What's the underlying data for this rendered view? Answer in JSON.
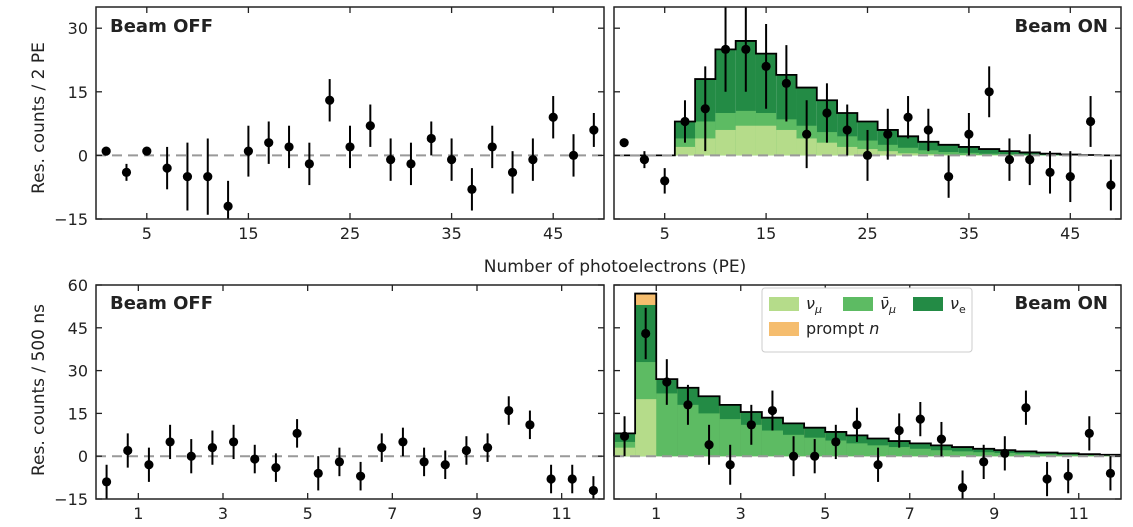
{
  "colors": {
    "numu": "#b5dc8a",
    "numubar": "#5dbb63",
    "nue": "#238b45",
    "prompt": "#f5bd6e",
    "data": "#000000",
    "zero_line": "#999999"
  },
  "labels": {
    "beam_off": "Beam OFF",
    "beam_on": "Beam ON",
    "ylabel_top": "Res. counts / 2 PE",
    "xlabel_top": "Number of photoelectrons (PE)",
    "ylabel_bottom": "Res. counts / 500 ns"
  },
  "legend": {
    "placement": "top-right (bottom-right panel)",
    "entries": [
      {
        "key": "numu",
        "label": "νμ"
      },
      {
        "key": "numubar",
        "label": "ν̄μ"
      },
      {
        "key": "nue",
        "label": "νe"
      },
      {
        "key": "prompt",
        "label": "prompt n"
      }
    ]
  },
  "chart_data": [
    {
      "id": "pe_off",
      "type": "scatter",
      "title": "Beam OFF",
      "ylabel": "Res. counts / 2 PE",
      "xlim": [
        0,
        50
      ],
      "ylim": [
        -15,
        35
      ],
      "xticks": [
        5,
        15,
        25,
        35,
        45
      ],
      "yticks": [
        -15,
        0,
        15,
        30
      ],
      "points": [
        {
          "x": 1,
          "y": 1,
          "err": 0
        },
        {
          "x": 3,
          "y": -4,
          "err": 2
        },
        {
          "x": 5,
          "y": 1,
          "err": 0
        },
        {
          "x": 7,
          "y": -3,
          "err": 5
        },
        {
          "x": 9,
          "y": -5,
          "err": 8
        },
        {
          "x": 11,
          "y": -5,
          "err": 9
        },
        {
          "x": 13,
          "y": -12,
          "err": 6
        },
        {
          "x": 15,
          "y": 1,
          "err": 6
        },
        {
          "x": 17,
          "y": 3,
          "err": 5
        },
        {
          "x": 19,
          "y": 2,
          "err": 5
        },
        {
          "x": 21,
          "y": -2,
          "err": 5
        },
        {
          "x": 23,
          "y": 13,
          "err": 5
        },
        {
          "x": 25,
          "y": 2,
          "err": 5
        },
        {
          "x": 27,
          "y": 7,
          "err": 5
        },
        {
          "x": 29,
          "y": -1,
          "err": 5
        },
        {
          "x": 31,
          "y": -2,
          "err": 5
        },
        {
          "x": 33,
          "y": 4,
          "err": 4
        },
        {
          "x": 35,
          "y": -1,
          "err": 5
        },
        {
          "x": 37,
          "y": -8,
          "err": 5
        },
        {
          "x": 39,
          "y": 2,
          "err": 5
        },
        {
          "x": 41,
          "y": -4,
          "err": 5
        },
        {
          "x": 43,
          "y": -1,
          "err": 5
        },
        {
          "x": 45,
          "y": 9,
          "err": 5
        },
        {
          "x": 47,
          "y": 0,
          "err": 5
        },
        {
          "x": 49,
          "y": 6,
          "err": 4
        }
      ]
    },
    {
      "id": "pe_on",
      "type": "area",
      "title": "Beam ON",
      "xlim": [
        0,
        50
      ],
      "ylim": [
        -15,
        35
      ],
      "xticks": [
        5,
        15,
        25,
        35,
        45
      ],
      "yticks": [
        -15,
        0,
        15,
        30
      ],
      "bin_edges": [
        0,
        2,
        4,
        6,
        8,
        10,
        12,
        14,
        16,
        18,
        20,
        22,
        24,
        26,
        28,
        30,
        32,
        34,
        36,
        38,
        40,
        42,
        44,
        46,
        48,
        50
      ],
      "stack_order": [
        "numu",
        "numubar",
        "nue"
      ],
      "stacks": {
        "numu": [
          0,
          0,
          0,
          2,
          4,
          6,
          7,
          7,
          6,
          4,
          3,
          2,
          1.5,
          1,
          0.5,
          0.3,
          0.2,
          0.1,
          0.1,
          0.05,
          0,
          0,
          0,
          0,
          0
        ],
        "numubar": [
          0,
          0,
          0,
          4,
          8,
          10,
          10.5,
          10,
          8.5,
          7,
          5.5,
          4.5,
          3.5,
          2.5,
          1.8,
          1.2,
          0.8,
          0.6,
          0.4,
          0.3,
          0.2,
          0.1,
          0.05,
          0,
          0
        ],
        "nue": [
          0,
          0,
          0,
          8,
          18,
          25,
          27,
          24,
          19,
          16,
          13,
          10,
          8,
          6,
          4.5,
          3.2,
          2.5,
          2,
          1.5,
          1,
          0.7,
          0.4,
          0.2,
          0.1,
          0
        ]
      },
      "points": [
        {
          "x": 1,
          "y": 3,
          "err": 1
        },
        {
          "x": 3,
          "y": -1,
          "err": 2
        },
        {
          "x": 5,
          "y": -6,
          "err": 3
        },
        {
          "x": 7,
          "y": 8,
          "err": 5
        },
        {
          "x": 9,
          "y": 11,
          "err": 10
        },
        {
          "x": 11,
          "y": 25,
          "err": 10
        },
        {
          "x": 13,
          "y": 25,
          "err": 10
        },
        {
          "x": 15,
          "y": 21,
          "err": 10
        },
        {
          "x": 17,
          "y": 17,
          "err": 9
        },
        {
          "x": 19,
          "y": 5,
          "err": 8
        },
        {
          "x": 21,
          "y": 10,
          "err": 7
        },
        {
          "x": 23,
          "y": 6,
          "err": 6
        },
        {
          "x": 25,
          "y": 0,
          "err": 6
        },
        {
          "x": 27,
          "y": 5,
          "err": 6
        },
        {
          "x": 29,
          "y": 9,
          "err": 5
        },
        {
          "x": 31,
          "y": 6,
          "err": 5
        },
        {
          "x": 33,
          "y": -5,
          "err": 5
        },
        {
          "x": 35,
          "y": 5,
          "err": 5
        },
        {
          "x": 37,
          "y": 15,
          "err": 6
        },
        {
          "x": 39,
          "y": -1,
          "err": 5
        },
        {
          "x": 41,
          "y": -1,
          "err": 6
        },
        {
          "x": 43,
          "y": -4,
          "err": 5
        },
        {
          "x": 45,
          "y": -5,
          "err": 6
        },
        {
          "x": 47,
          "y": 8,
          "err": 6
        },
        {
          "x": 49,
          "y": -7,
          "err": 6
        }
      ]
    },
    {
      "id": "t_off",
      "type": "scatter",
      "title": "Beam OFF",
      "ylabel": "Res. counts / 500 ns",
      "xlim": [
        0,
        12
      ],
      "ylim": [
        -15,
        60
      ],
      "xticks": [
        1,
        3,
        5,
        7,
        9,
        11
      ],
      "yticks": [
        -15,
        0,
        15,
        30,
        45,
        60
      ],
      "points": [
        {
          "x": 0.25,
          "y": -9,
          "err": 6
        },
        {
          "x": 0.75,
          "y": 2,
          "err": 6
        },
        {
          "x": 1.25,
          "y": -3,
          "err": 6
        },
        {
          "x": 1.75,
          "y": 5,
          "err": 6
        },
        {
          "x": 2.25,
          "y": 0,
          "err": 6
        },
        {
          "x": 2.75,
          "y": 3,
          "err": 6
        },
        {
          "x": 3.25,
          "y": 5,
          "err": 6
        },
        {
          "x": 3.75,
          "y": -1,
          "err": 5
        },
        {
          "x": 4.25,
          "y": -4,
          "err": 5
        },
        {
          "x": 4.75,
          "y": 8,
          "err": 5
        },
        {
          "x": 5.25,
          "y": -6,
          "err": 6
        },
        {
          "x": 5.75,
          "y": -2,
          "err": 5
        },
        {
          "x": 6.25,
          "y": -7,
          "err": 5
        },
        {
          "x": 6.75,
          "y": 3,
          "err": 5
        },
        {
          "x": 7.25,
          "y": 5,
          "err": 5
        },
        {
          "x": 7.75,
          "y": -2,
          "err": 5
        },
        {
          "x": 8.25,
          "y": -3,
          "err": 5
        },
        {
          "x": 8.75,
          "y": 2,
          "err": 5
        },
        {
          "x": 9.25,
          "y": 3,
          "err": 5
        },
        {
          "x": 9.75,
          "y": 16,
          "err": 5
        },
        {
          "x": 10.25,
          "y": 11,
          "err": 5
        },
        {
          "x": 10.75,
          "y": -8,
          "err": 5
        },
        {
          "x": 11.25,
          "y": -8,
          "err": 5
        },
        {
          "x": 11.75,
          "y": -12,
          "err": 5
        }
      ]
    },
    {
      "id": "t_on",
      "type": "area",
      "title": "Beam ON",
      "xlim": [
        0,
        12
      ],
      "ylim": [
        -15,
        60
      ],
      "xticks": [
        1,
        3,
        5,
        7,
        9,
        11
      ],
      "yticks": [
        -15,
        0,
        15,
        30,
        45,
        60
      ],
      "bin_edges": [
        0,
        0.5,
        1,
        1.5,
        2,
        2.5,
        3,
        3.5,
        4,
        4.5,
        5,
        5.5,
        6,
        6.5,
        7,
        7.5,
        8,
        8.5,
        9,
        9.5,
        10,
        10.5,
        11,
        11.5,
        12
      ],
      "stack_order": [
        "numu",
        "numubar",
        "nue",
        "prompt"
      ],
      "stacks": {
        "numu": [
          3,
          20,
          0,
          0,
          0,
          0,
          0,
          0,
          0,
          0,
          0,
          0,
          0,
          0,
          0,
          0,
          0,
          0,
          0,
          0,
          0,
          0,
          0,
          0
        ],
        "numubar": [
          5,
          33,
          22,
          18,
          15,
          13,
          11,
          9,
          7.5,
          6.5,
          5.5,
          4.5,
          3.8,
          3.2,
          2.6,
          2.1,
          1.7,
          1.4,
          1.1,
          0.9,
          0.7,
          0.5,
          0.4,
          0.3
        ],
        "nue": [
          8,
          53,
          27,
          24,
          21,
          18,
          15.5,
          13.5,
          11.5,
          10,
          8.5,
          7.3,
          6.2,
          5.3,
          4.5,
          3.8,
          3.2,
          2.6,
          2.1,
          1.7,
          1.3,
          1,
          0.7,
          0.5
        ],
        "prompt": [
          8,
          57,
          27,
          24,
          21,
          18,
          15.5,
          13.5,
          11.5,
          10,
          8.5,
          7.3,
          6.2,
          5.3,
          4.5,
          3.8,
          3.2,
          2.6,
          2.1,
          1.7,
          1.3,
          1,
          0.7,
          0.5
        ]
      },
      "points": [
        {
          "x": 0.25,
          "y": 7,
          "err": 7
        },
        {
          "x": 0.75,
          "y": 43,
          "err": 9
        },
        {
          "x": 1.25,
          "y": 26,
          "err": 8
        },
        {
          "x": 1.75,
          "y": 18,
          "err": 7
        },
        {
          "x": 2.25,
          "y": 4,
          "err": 7
        },
        {
          "x": 2.75,
          "y": -3,
          "err": 7
        },
        {
          "x": 3.25,
          "y": 11,
          "err": 7
        },
        {
          "x": 3.75,
          "y": 16,
          "err": 7
        },
        {
          "x": 4.25,
          "y": 0,
          "err": 7
        },
        {
          "x": 4.75,
          "y": 0,
          "err": 6
        },
        {
          "x": 5.25,
          "y": 5,
          "err": 6
        },
        {
          "x": 5.75,
          "y": 11,
          "err": 6
        },
        {
          "x": 6.25,
          "y": -3,
          "err": 6
        },
        {
          "x": 6.75,
          "y": 9,
          "err": 6
        },
        {
          "x": 7.25,
          "y": 13,
          "err": 6
        },
        {
          "x": 7.75,
          "y": 6,
          "err": 6
        },
        {
          "x": 8.25,
          "y": -11,
          "err": 6
        },
        {
          "x": 8.75,
          "y": -2,
          "err": 6
        },
        {
          "x": 9.25,
          "y": 1,
          "err": 6
        },
        {
          "x": 9.75,
          "y": 17,
          "err": 6
        },
        {
          "x": 10.25,
          "y": -8,
          "err": 6
        },
        {
          "x": 10.75,
          "y": -7,
          "err": 6
        },
        {
          "x": 11.25,
          "y": 8,
          "err": 6
        },
        {
          "x": 11.75,
          "y": -6,
          "err": 6
        }
      ]
    }
  ]
}
